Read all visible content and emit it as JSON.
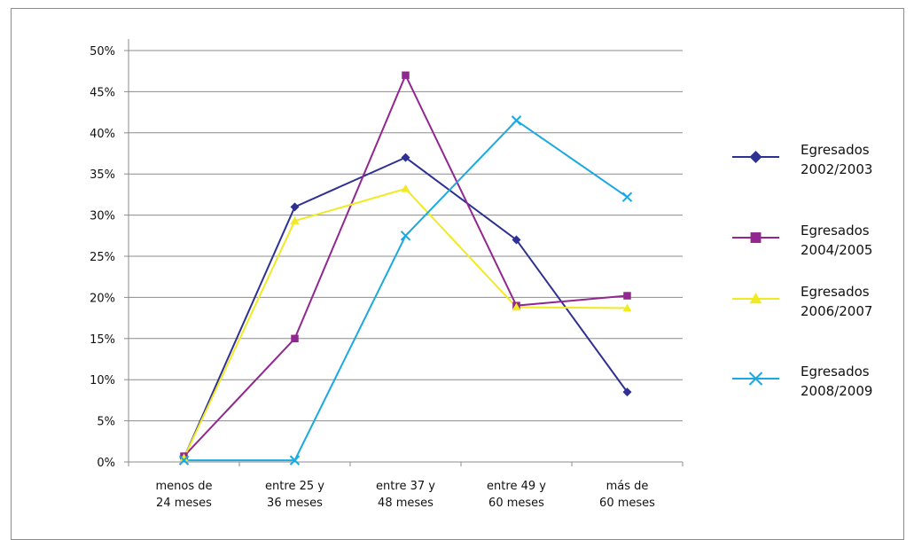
{
  "chart_data": {
    "type": "line",
    "title": "",
    "xlabel": "",
    "ylabel": "",
    "ylim": [
      0,
      50
    ],
    "y_ticks": [
      "0%",
      "5%",
      "10%",
      "15%",
      "20%",
      "25%",
      "30%",
      "35%",
      "40%",
      "45%",
      "50%"
    ],
    "categories": [
      [
        "menos de",
        "24 meses"
      ],
      [
        "entre 25 y",
        "36 meses"
      ],
      [
        "entre 37 y",
        "48 meses"
      ],
      [
        "entre 49 y",
        "60 meses"
      ],
      [
        "más de",
        "60 meses"
      ]
    ],
    "grid": true,
    "legend_position": "right",
    "series": [
      {
        "name": [
          "Egresados",
          "2002/2003"
        ],
        "color": "#2e3192",
        "marker": "diamond",
        "values": [
          0.5,
          31,
          37,
          27,
          8.5
        ]
      },
      {
        "name": [
          "Egresados",
          "2004/2005"
        ],
        "color": "#92278f",
        "marker": "square",
        "values": [
          0.7,
          15,
          47,
          19,
          20.2
        ]
      },
      {
        "name": [
          "Egresados",
          "2006/2007"
        ],
        "color": "#f0ea22",
        "marker": "triangle",
        "values": [
          0.5,
          29.3,
          33.2,
          18.8,
          18.7
        ]
      },
      {
        "name": [
          "Egresados",
          "2008/2009"
        ],
        "color": "#1aa9e1",
        "marker": "x",
        "values": [
          0.2,
          0.2,
          27.5,
          41.5,
          32.2
        ]
      }
    ]
  }
}
